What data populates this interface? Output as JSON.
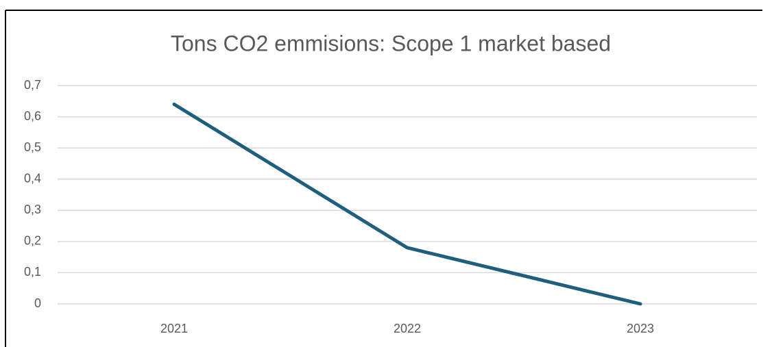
{
  "chart_data": {
    "type": "line",
    "title": "Tons CO2 emmisions: Scope 1 market based",
    "categories": [
      "2021",
      "2022",
      "2023"
    ],
    "series": [
      {
        "name": "Tons CO2",
        "color": "#1f5f7e",
        "values": [
          0.64,
          0.18,
          0
        ]
      }
    ],
    "ylim": [
      0,
      0.7
    ],
    "yticks": [
      0,
      {
        "value": 0.1,
        "label": "0,1"
      },
      {
        "value": 0.2,
        "label": "0,2"
      },
      {
        "value": 0.3,
        "label": "0,3"
      },
      {
        "value": 0.4,
        "label": "0,4"
      },
      {
        "value": 0.5,
        "label": "0,5"
      },
      {
        "value": 0.6,
        "label": "0,6"
      },
      {
        "value": 0.7,
        "label": "0,7"
      }
    ],
    "grid": true
  }
}
